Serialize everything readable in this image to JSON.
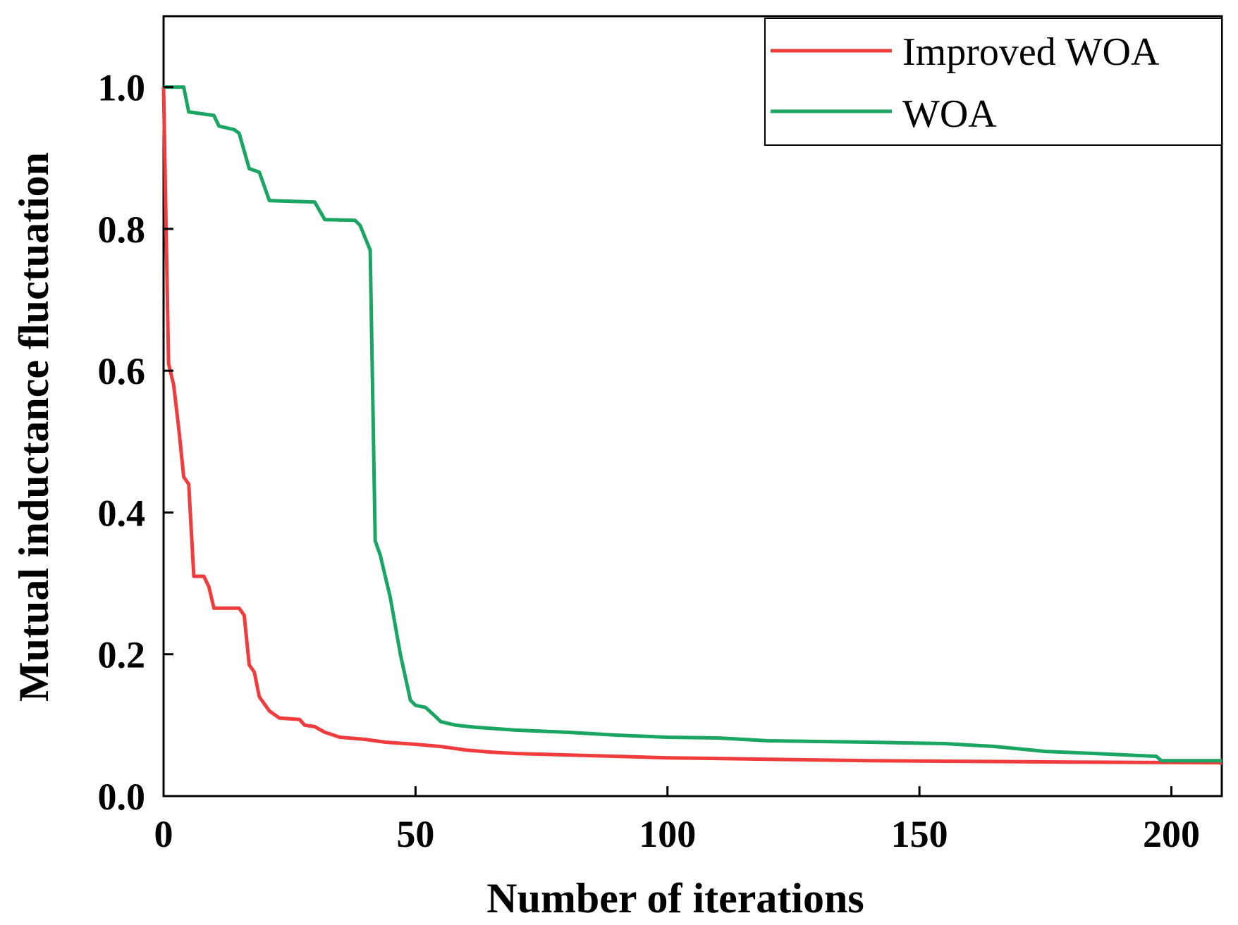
{
  "chart_data": {
    "type": "line",
    "title": "",
    "xlabel": "Number of iterations",
    "ylabel": "Mutual inductance fluctuation",
    "xlim": [
      0,
      210
    ],
    "ylim": [
      0,
      1.1
    ],
    "x_ticks": [
      0,
      50,
      100,
      150,
      200
    ],
    "x_tick_labels": [
      "0",
      "50",
      "100",
      "150",
      "200"
    ],
    "y_ticks": [
      0,
      0.2,
      0.4,
      0.6,
      0.8,
      1.0
    ],
    "y_tick_labels": [
      "0.0",
      "0.2",
      "0.4",
      "0.6",
      "0.8",
      "1.0"
    ],
    "grid": false,
    "legend_position": "top-right",
    "series": [
      {
        "name": "Improved WOA",
        "color": "#f03c3c",
        "points": [
          [
            0,
            1.0
          ],
          [
            0.5,
            0.8
          ],
          [
            1,
            0.61
          ],
          [
            2,
            0.58
          ],
          [
            3,
            0.52
          ],
          [
            4,
            0.45
          ],
          [
            5,
            0.44
          ],
          [
            6,
            0.31
          ],
          [
            8,
            0.31
          ],
          [
            9,
            0.295
          ],
          [
            10,
            0.265
          ],
          [
            15,
            0.265
          ],
          [
            16,
            0.255
          ],
          [
            17,
            0.185
          ],
          [
            18,
            0.175
          ],
          [
            19,
            0.14
          ],
          [
            21,
            0.12
          ],
          [
            23,
            0.11
          ],
          [
            27,
            0.108
          ],
          [
            28,
            0.1
          ],
          [
            30,
            0.098
          ],
          [
            32,
            0.09
          ],
          [
            35,
            0.083
          ],
          [
            40,
            0.08
          ],
          [
            44,
            0.076
          ],
          [
            50,
            0.073
          ],
          [
            55,
            0.07
          ],
          [
            60,
            0.065
          ],
          [
            65,
            0.062
          ],
          [
            70,
            0.06
          ],
          [
            80,
            0.058
          ],
          [
            90,
            0.056
          ],
          [
            100,
            0.054
          ],
          [
            120,
            0.052
          ],
          [
            140,
            0.05
          ],
          [
            160,
            0.049
          ],
          [
            180,
            0.048
          ],
          [
            210,
            0.047
          ]
        ]
      },
      {
        "name": "WOA",
        "color": "#1aa563",
        "points": [
          [
            0,
            1.0
          ],
          [
            4,
            1.0
          ],
          [
            5,
            0.965
          ],
          [
            10,
            0.96
          ],
          [
            11,
            0.945
          ],
          [
            14,
            0.94
          ],
          [
            15,
            0.935
          ],
          [
            17,
            0.885
          ],
          [
            19,
            0.88
          ],
          [
            21,
            0.84
          ],
          [
            30,
            0.838
          ],
          [
            32,
            0.813
          ],
          [
            38,
            0.812
          ],
          [
            39,
            0.805
          ],
          [
            41,
            0.77
          ],
          [
            42,
            0.36
          ],
          [
            43,
            0.34
          ],
          [
            45,
            0.28
          ],
          [
            47,
            0.2
          ],
          [
            49,
            0.135
          ],
          [
            50,
            0.128
          ],
          [
            52,
            0.125
          ],
          [
            54,
            0.112
          ],
          [
            55,
            0.105
          ],
          [
            58,
            0.1
          ],
          [
            62,
            0.097
          ],
          [
            70,
            0.093
          ],
          [
            80,
            0.09
          ],
          [
            90,
            0.086
          ],
          [
            100,
            0.083
          ],
          [
            110,
            0.082
          ],
          [
            120,
            0.078
          ],
          [
            140,
            0.076
          ],
          [
            155,
            0.074
          ],
          [
            165,
            0.07
          ],
          [
            175,
            0.063
          ],
          [
            185,
            0.06
          ],
          [
            197,
            0.056
          ],
          [
            198,
            0.05
          ],
          [
            210,
            0.05
          ]
        ]
      }
    ]
  }
}
